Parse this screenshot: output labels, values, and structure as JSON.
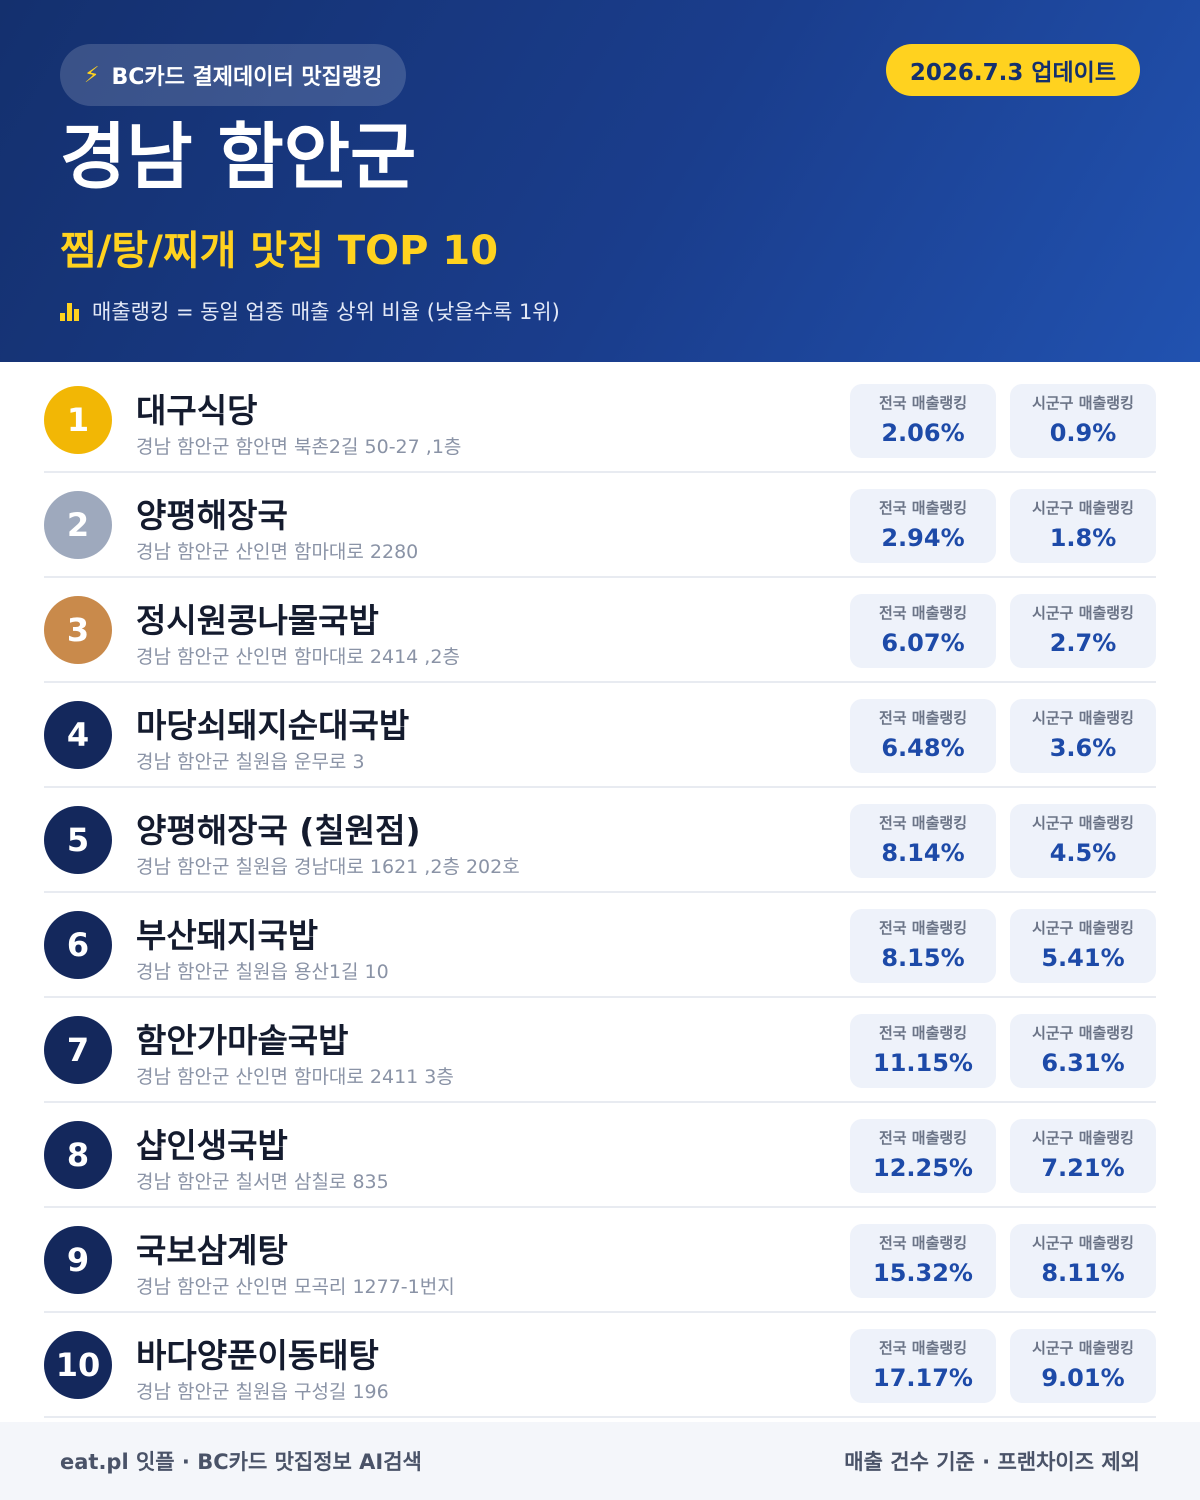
{
  "header": {
    "brand_icon": "lightning-icon",
    "brand": "BC카드 결제데이터 맛집랭킹",
    "updated": "2026.7.3 업데이트",
    "title": "경남 함안군",
    "subtitle": "찜/탕/찌개 맛집 TOP 10",
    "note_icon": "bar-chart-icon",
    "note": "매출랭킹 = 동일 업종 매출 상위 비율 (낮을수록 1위)"
  },
  "colors": {
    "gold": "#f2b705",
    "silver": "#9ea9bd",
    "bronze": "#c98a4b",
    "navy": "#14285c",
    "accent": "#ffd21f",
    "value": "#1d4aa8"
  },
  "labels": {
    "national": "전국 매출랭킹",
    "local": "시군구 매출랭킹"
  },
  "items": [
    {
      "rank": "1",
      "name": "대구식당",
      "address": "경남 함안군 함안면 북촌2길 50-27 ,1층",
      "national": "2.06%",
      "local": "0.9%"
    },
    {
      "rank": "2",
      "name": "양평해장국",
      "address": "경남 함안군 산인면 함마대로 2280",
      "national": "2.94%",
      "local": "1.8%"
    },
    {
      "rank": "3",
      "name": "정시원콩나물국밥",
      "address": "경남 함안군 산인면 함마대로 2414 ,2층",
      "national": "6.07%",
      "local": "2.7%"
    },
    {
      "rank": "4",
      "name": "마당쇠돼지순대국밥",
      "address": "경남 함안군 칠원읍 운무로 3",
      "national": "6.48%",
      "local": "3.6%"
    },
    {
      "rank": "5",
      "name": "양평해장국 (칠원점)",
      "address": "경남 함안군 칠원읍 경남대로 1621 ,2층 202호",
      "national": "8.14%",
      "local": "4.5%"
    },
    {
      "rank": "6",
      "name": "부산돼지국밥",
      "address": "경남 함안군 칠원읍 용산1길 10",
      "national": "8.15%",
      "local": "5.41%"
    },
    {
      "rank": "7",
      "name": "함안가마솥국밥",
      "address": "경남 함안군 산인면 함마대로 2411 3층",
      "national": "11.15%",
      "local": "6.31%"
    },
    {
      "rank": "8",
      "name": "샵인생국밥",
      "address": "경남 함안군 칠서면 삼칠로 835",
      "national": "12.25%",
      "local": "7.21%"
    },
    {
      "rank": "9",
      "name": "국보삼계탕",
      "address": "경남 함안군 산인면 모곡리 1277-1번지",
      "national": "15.32%",
      "local": "8.11%"
    },
    {
      "rank": "10",
      "name": "바다양푼이동태탕",
      "address": "경남 함안군 칠원읍 구성길 196",
      "national": "17.17%",
      "local": "9.01%"
    }
  ],
  "footer": {
    "left": "eat.pl 잇플 · BC카드 맛집정보 AI검색",
    "right": "매출 건수 기준 · 프랜차이즈 제외"
  }
}
